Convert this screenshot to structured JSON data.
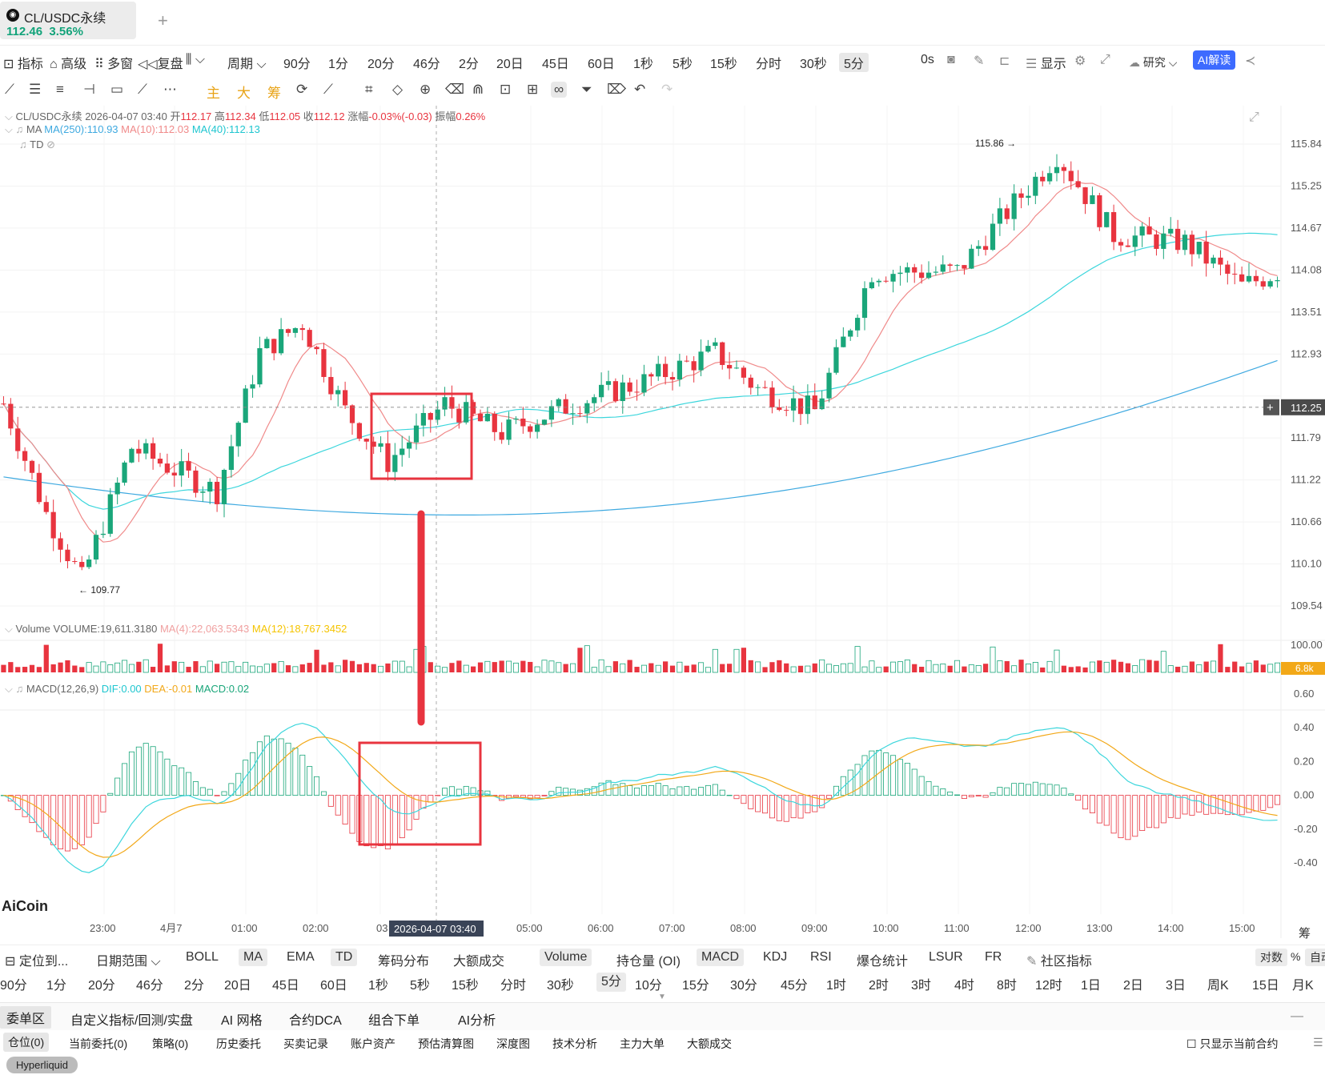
{
  "tab": {
    "title": "CL/USDC永续",
    "price": "112.46",
    "change": "3.56%",
    "add": "+"
  },
  "toolbar": {
    "indicators": "指标",
    "advanced": "高级",
    "multi_window": "多窗",
    "replay": "复盘",
    "chart_type": "⌵",
    "period": "周期",
    "periods": [
      "90分",
      "1分",
      "20分",
      "46分",
      "2分",
      "20日",
      "45日",
      "60日",
      "1秒",
      "5秒",
      "15秒",
      "分时",
      "30秒",
      "5分"
    ],
    "selected_period": "5分",
    "zero_s": "0s",
    "display": "显示",
    "research": "研究",
    "ai": "AI解读"
  },
  "drawbar": {
    "main": "主",
    "big": "大",
    "chips": "筹"
  },
  "legend": {
    "symbol": "CL/USDC永续",
    "datetime": "2026-04-07 03:40",
    "open_label": "开",
    "open": "112.17",
    "high_label": "高",
    "high": "112.34",
    "low_label": "低",
    "low": "112.05",
    "close_label": "收",
    "close": "112.12",
    "chg_label": "涨幅",
    "chg": "-0.03%(-0.03)",
    "amp_label": "振幅",
    "amp": "0.26%",
    "ma_label": "MA",
    "ma250": "MA(250):110.93",
    "ma10": "MA(10):112.03",
    "ma40": "MA(40):112.13",
    "td": "TD",
    "vol_label": "Volume",
    "vol": "VOLUME:19,611.3180",
    "vol_ma4": "MA(4):22,063.5343",
    "vol_ma12": "MA(12):18,767.3452",
    "macd_label": "MACD(12,26,9)",
    "dif": "DIF:0.00",
    "dea": "DEA:-0.01",
    "macd": "MACD:0.02"
  },
  "chart_data": {
    "type": "candlestick",
    "price_axis": [
      "115.84",
      "115.25",
      "114.67",
      "114.08",
      "113.51",
      "112.93",
      "112.25",
      "111.79",
      "111.22",
      "110.66",
      "110.10",
      "109.54"
    ],
    "current_price": "112.25",
    "high_marker": "115.86",
    "low_marker": "109.77",
    "volume_axis": "100.00",
    "volume_current": "6.8k",
    "macd_axis": [
      "0.60",
      "0.40",
      "0.20",
      "0.00",
      "-0.20",
      "-0.40"
    ],
    "time_axis": [
      "23:00",
      "4月7",
      "01:00",
      "02:00",
      "03",
      "05:00",
      "06:00",
      "07:00",
      "08:00",
      "09:00",
      "10:00",
      "11:00",
      "12:00",
      "13:00",
      "14:00",
      "15:00"
    ],
    "crosshair_time": "2026-04-07 03:40",
    "price_range": [
      109.54,
      115.84
    ],
    "colors": {
      "up": "#1aa67a",
      "down": "#e8343f",
      "ma10": "#f08a8a",
      "ma40": "#3cd6dc",
      "ma250": "#3ea9e0",
      "dea": "#f2a818",
      "annotation": "#e8343f"
    }
  },
  "watermark": "AiCoin",
  "corner_label": "筹",
  "indicator_bar": {
    "locate": "定位到...",
    "date_range": "日期范围",
    "main": [
      "BOLL",
      "MA",
      "EMA",
      "TD",
      "筹码分布",
      "大额成交"
    ],
    "main_selected": [
      "MA",
      "TD"
    ],
    "sub": [
      "Volume",
      "持仓量 (OI)",
      "MACD",
      "KDJ",
      "RSI",
      "爆仓统计",
      "LSUR",
      "FR",
      "社区指标"
    ],
    "sub_selected": [
      "Volume",
      "MACD"
    ],
    "log": "对数",
    "percent": "%",
    "auto": "自动"
  },
  "period_bar": [
    "90分",
    "1分",
    "20分",
    "46分",
    "2分",
    "20日",
    "45日",
    "60日",
    "1秒",
    "5秒",
    "15秒",
    "分时",
    "30秒",
    "5分",
    "10分",
    "15分",
    "30分",
    "45分",
    "1时",
    "2时",
    "3时",
    "4时",
    "8时",
    "12时",
    "1日",
    "2日",
    "3日",
    "周K",
    "15日",
    "月K"
  ],
  "period_selected": "5分",
  "order_bar": [
    "委单区",
    "自定义指标/回测/实盘",
    "AI 网格",
    "合约DCA",
    "组合下单",
    "AI分析"
  ],
  "sub_bar": [
    "仓位(0)",
    "当前委托(0)",
    "策略(0)",
    "历史委托",
    "买卖记录",
    "账户资产",
    "预估清算图",
    "深度图",
    "技术分析",
    "主力大单",
    "大额成交"
  ],
  "only_current": "只显示当前合约",
  "exchange": "Hyperliquid"
}
